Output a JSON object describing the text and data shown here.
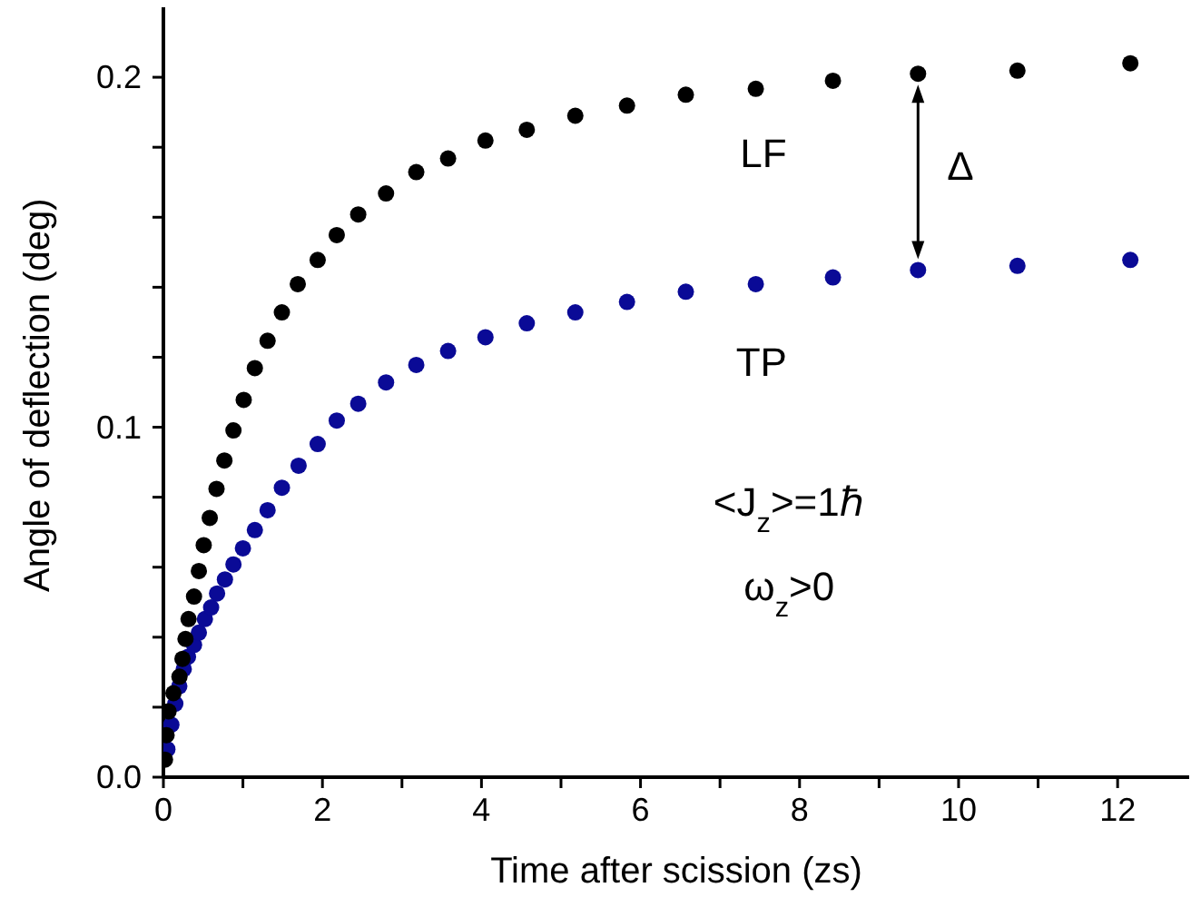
{
  "chart_data": {
    "type": "scatter",
    "xlabel": "Time after scission (zs)",
    "ylabel": "Angle of deflection (deg)",
    "xlim": [
      0,
      12.9
    ],
    "xticks": [
      0,
      {
        "value": 1,
        "label": null
      },
      2,
      {
        "value": 3,
        "label": null
      },
      4,
      {
        "value": 5,
        "label": null
      },
      6,
      {
        "value": 7,
        "label": null
      },
      8,
      {
        "value": 9,
        "label": null
      },
      10,
      {
        "value": 11,
        "label": null
      },
      12
    ],
    "ylim": [
      0,
      0.22
    ],
    "yticks": [
      {
        "value": 0,
        "label": "0.0"
      },
      {
        "value": 0.02,
        "label": null
      },
      {
        "value": 0.04,
        "label": null
      },
      {
        "value": 0.06,
        "label": null
      },
      {
        "value": 0.08,
        "label": null
      },
      {
        "value": 0.1,
        "label": "0.1"
      },
      {
        "value": 0.12,
        "label": null
      },
      {
        "value": 0.14,
        "label": null
      },
      {
        "value": 0.16,
        "label": null
      },
      {
        "value": 0.18,
        "label": null
      },
      {
        "value": 0.2,
        "label": "0.2"
      }
    ],
    "marker": "circle",
    "series": [
      {
        "color": "#000000",
        "x": [
          0.02,
          0.04,
          0.065,
          0.126,
          0.202,
          0.24,
          0.278,
          0.316,
          0.385,
          0.446,
          0.507,
          0.583,
          0.668,
          0.767,
          0.881,
          1.01,
          1.15,
          1.31,
          1.49,
          1.69,
          1.94,
          2.18,
          2.45,
          2.8,
          3.18,
          3.58,
          4.05,
          4.57,
          5.18,
          5.83,
          6.57,
          7.45,
          8.42,
          9.49,
          10.74,
          12.16
        ],
        "values": [
          0.005,
          0.012,
          0.0188,
          0.024,
          0.0287,
          0.0338,
          0.0395,
          0.0452,
          0.0516,
          0.0589,
          0.0663,
          0.0741,
          0.0824,
          0.0905,
          0.0991,
          0.1078,
          0.1169,
          0.1247,
          0.1328,
          0.1409,
          0.1478,
          0.1549,
          0.1608,
          0.1668,
          0.1729,
          0.1768,
          0.1819,
          0.185,
          0.189,
          0.1919,
          0.195,
          0.1967,
          0.199,
          0.201,
          0.2019,
          0.204
        ]
      },
      {
        "color": "#0a0a96",
        "x": [
          0.05,
          0.1,
          0.15,
          0.2,
          0.256,
          0.309,
          0.385,
          0.446,
          0.522,
          0.6,
          0.675,
          0.774,
          0.881,
          1.0,
          1.15,
          1.31,
          1.49,
          1.7,
          1.94,
          2.18,
          2.45,
          2.8,
          3.18,
          3.58,
          4.05,
          4.57,
          5.18,
          5.83,
          6.57,
          7.45,
          8.42,
          9.49,
          10.74,
          12.16
        ],
        "values": [
          0.008,
          0.015,
          0.021,
          0.026,
          0.0309,
          0.0344,
          0.0378,
          0.0413,
          0.0452,
          0.0485,
          0.0525,
          0.0565,
          0.0608,
          0.0654,
          0.0706,
          0.0763,
          0.0827,
          0.089,
          0.0952,
          0.1019,
          0.1067,
          0.1128,
          0.1178,
          0.1218,
          0.1257,
          0.1297,
          0.1328,
          0.1358,
          0.1387,
          0.1409,
          0.1428,
          0.1449,
          0.1461,
          0.1478
        ]
      }
    ],
    "annotations": [
      "LF",
      "TP",
      "Δ",
      "<J$_{z}$>=1ℏ",
      "ω$_{z}$>0"
    ]
  }
}
